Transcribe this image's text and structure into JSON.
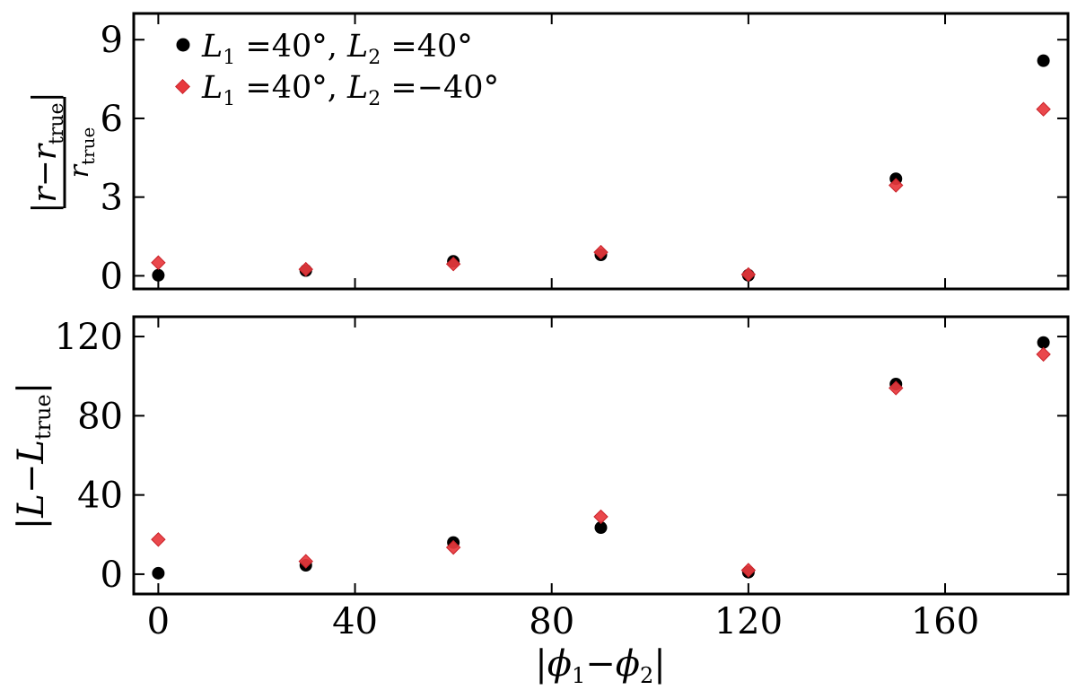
{
  "chart_data": [
    {
      "type": "scatter",
      "panel": "top",
      "ylabel": {
        "numerator": {
          "abs_open": "|",
          "var": "r",
          "minus": "−",
          "var2": "r",
          "sub": "true",
          "abs_close": "|"
        },
        "denominator": {
          "var": "r",
          "sub": "true"
        }
      },
      "xlim": [
        -5,
        185
      ],
      "ylim": [
        -0.5,
        10
      ],
      "yticks": [
        0,
        3,
        6,
        9
      ],
      "ytick_labels": [
        "0",
        "3",
        "6",
        "9"
      ],
      "xticks": [
        0,
        40,
        80,
        120,
        160
      ],
      "show_xtick_labels": false,
      "grid": false,
      "legend_position": "top-left",
      "series": [
        {
          "name_parts": {
            "a": "L",
            "asub": "1",
            "aval": " =40°, ",
            "b": "L",
            "bsub": "2",
            "bval": " =40°"
          },
          "marker": "circle",
          "color": "#000000",
          "x": [
            0,
            30,
            60,
            90,
            120,
            150,
            180
          ],
          "y": [
            0.02,
            0.2,
            0.55,
            0.8,
            0.02,
            3.7,
            8.2
          ]
        },
        {
          "name_parts": {
            "a": "L",
            "asub": "1",
            "aval": " =40°, ",
            "b": "L",
            "bsub": "2",
            "bval": " =−40°"
          },
          "marker": "diamond",
          "color": "#e8383d",
          "x": [
            0,
            30,
            60,
            90,
            120,
            150,
            180
          ],
          "y": [
            0.5,
            0.25,
            0.45,
            0.9,
            0.05,
            3.45,
            6.35
          ]
        }
      ]
    },
    {
      "type": "scatter",
      "panel": "bottom",
      "ylabel": {
        "abs_open": "|",
        "var": "L",
        "minus": "−",
        "var2": "L",
        "sub": "true",
        "abs_close": "|"
      },
      "xlabel": {
        "abs_open": "|",
        "var": "ϕ",
        "sub1": "1",
        "minus": "−",
        "var2": "ϕ",
        "sub2": "2",
        "abs_close": "|"
      },
      "xlim": [
        -5,
        185
      ],
      "ylim": [
        -10,
        130
      ],
      "yticks": [
        0,
        40,
        80,
        120
      ],
      "ytick_labels": [
        "0",
        "40",
        "80",
        "120"
      ],
      "xticks": [
        0,
        40,
        80,
        120,
        160
      ],
      "xtick_labels": [
        "0",
        "40",
        "80",
        "120",
        "160"
      ],
      "grid": false,
      "series": [
        {
          "marker": "circle",
          "color": "#000000",
          "x": [
            0,
            30,
            60,
            90,
            120,
            150,
            180
          ],
          "y": [
            0.5,
            4.5,
            16,
            23.5,
            1,
            96,
            117
          ]
        },
        {
          "marker": "diamond",
          "color": "#e8383d",
          "x": [
            0,
            30,
            60,
            90,
            120,
            150,
            180
          ],
          "y": [
            17.5,
            6.5,
            13.5,
            29,
            2,
            94,
            111
          ]
        }
      ]
    }
  ]
}
